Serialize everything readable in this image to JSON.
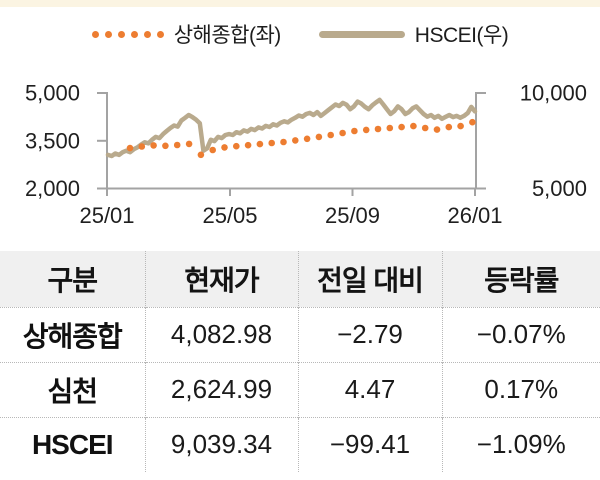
{
  "legend": {
    "series1": "상해종합(좌)",
    "series2": "HSCEI(우)"
  },
  "colors": {
    "shanghai_orange": "#ED7D31",
    "hscei_tan": "#B9AA8D",
    "axis_gray": "#A3A3A3",
    "table_header_bg": "#F0F0F0",
    "top_strip_cream": "#FBF4E2"
  },
  "chart_data": {
    "type": "line",
    "title": "",
    "x_ticks": [
      "25/01",
      "25/05",
      "25/09",
      "26/01"
    ],
    "left_axis": {
      "min": 2000,
      "max": 5000,
      "ticks": [
        "5,000",
        "3,500",
        "2,000"
      ]
    },
    "right_axis": {
      "min": 5000,
      "max": 10000,
      "ticks": [
        "10,000",
        "5,000"
      ]
    },
    "grid": false,
    "legend_position": "top",
    "series": [
      {
        "name": "상해종합(좌)",
        "axis": "left",
        "style": "dots",
        "color": "#ED7D31",
        "x_start": 0.06,
        "x_end": 0.993,
        "values": [
          3270,
          3320,
          3355,
          3340,
          3365,
          3400,
          3060,
          3210,
          3290,
          3330,
          3360,
          3395,
          3430,
          3460,
          3510,
          3560,
          3620,
          3680,
          3745,
          3805,
          3840,
          3870,
          3900,
          3930,
          3960,
          3900,
          3850,
          3930,
          3960,
          4083
        ]
      },
      {
        "name": "HSCEI(우)",
        "axis": "right",
        "style": "line",
        "color": "#B9AA8D",
        "x_start": 0.0,
        "x_end": 1.0,
        "values": [
          6760,
          6700,
          6830,
          6760,
          6900,
          6980,
          6900,
          7050,
          7150,
          7300,
          7420,
          7360,
          7550,
          7700,
          7640,
          7850,
          8010,
          8170,
          8300,
          8240,
          8560,
          8700,
          8850,
          8740,
          8600,
          8420,
          6980,
          7100,
          7550,
          7480,
          7700,
          7640,
          7800,
          7850,
          7800,
          7950,
          7890,
          8040,
          7980,
          8120,
          8060,
          8200,
          8140,
          8280,
          8220,
          8360,
          8300,
          8440,
          8520,
          8460,
          8600,
          8700,
          8820,
          8760,
          8900,
          8960,
          8850,
          9000,
          8800,
          8950,
          9100,
          9250,
          9400,
          9320,
          9480,
          9380,
          9150,
          9300,
          9550,
          9450,
          9280,
          9150,
          9350,
          9500,
          9640,
          9400,
          9150,
          8900,
          9050,
          9300,
          9150,
          8900,
          9000,
          9200,
          9300,
          9100,
          8900,
          8760,
          8850,
          8700,
          8800,
          8650,
          8750,
          8850,
          8740,
          8800,
          8700,
          8800,
          8950,
          9270,
          9039
        ]
      }
    ]
  },
  "table": {
    "headers": [
      "구분",
      "현재가",
      "전일 대비",
      "등락률"
    ],
    "rows": [
      {
        "label": "상해종합",
        "price": "4,082.98",
        "change": "−2.79",
        "pct": "−0.07%"
      },
      {
        "label": "심천",
        "price": "2,624.99",
        "change": "4.47",
        "pct": "0.17%"
      },
      {
        "label": "HSCEI",
        "price": "9,039.34",
        "change": "−99.41",
        "pct": "−1.09%"
      }
    ]
  }
}
